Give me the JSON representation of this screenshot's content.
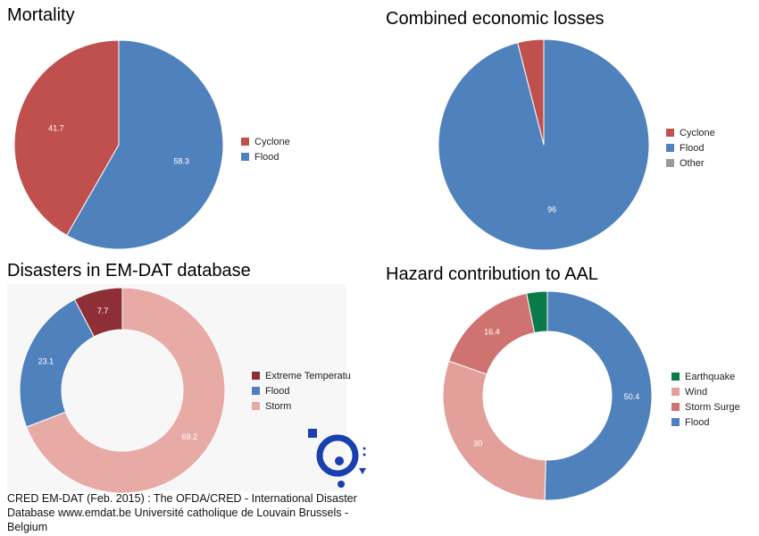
{
  "chart_data": [
    {
      "type": "pie",
      "title": "Mortality",
      "categories": [
        "Cyclone",
        "Flood"
      ],
      "values": [
        41.7,
        58.3
      ],
      "colors": [
        "#c0504d",
        "#4f81bd"
      ],
      "labels": [
        "41.7",
        "58.3"
      ],
      "legend_placement": "right"
    },
    {
      "type": "pie",
      "title": "Combined economic losses",
      "categories": [
        "Cyclone",
        "Flood",
        "Other"
      ],
      "values": [
        4,
        96,
        0
      ],
      "colors": [
        "#c0504d",
        "#4f81bd",
        "#999999"
      ],
      "labels": [
        "",
        "96",
        ""
      ],
      "legend_placement": "right"
    },
    {
      "type": "pie",
      "donut": true,
      "title": "Disasters in EM-DAT database",
      "categories": [
        "Extreme Temperatu",
        "Flood",
        "Storm"
      ],
      "values": [
        7.7,
        23.1,
        69.2
      ],
      "colors": [
        "#8e2e36",
        "#4f81bd",
        "#e8aaa5"
      ],
      "labels": [
        "7.7",
        "23.1",
        "69.2"
      ],
      "legend_placement": "right"
    },
    {
      "type": "pie",
      "donut": true,
      "title": "Hazard contribution to AAL",
      "categories": [
        "Earthquake",
        "Wind",
        "Storm Surge",
        "Flood"
      ],
      "values": [
        3.2,
        30,
        16.4,
        50.4
      ],
      "colors": [
        "#0a7a48",
        "#e3a09a",
        "#cf7370",
        "#4f81bd"
      ],
      "labels": [
        "",
        "30",
        "16.4",
        "50.4"
      ],
      "legend_placement": "right"
    }
  ],
  "credit": "CRED EM-DAT (Feb. 2015) : The OFDA/CRED - International Disaster Database www.emdat.be Université catholique de Louvain Brussels - Belgium"
}
